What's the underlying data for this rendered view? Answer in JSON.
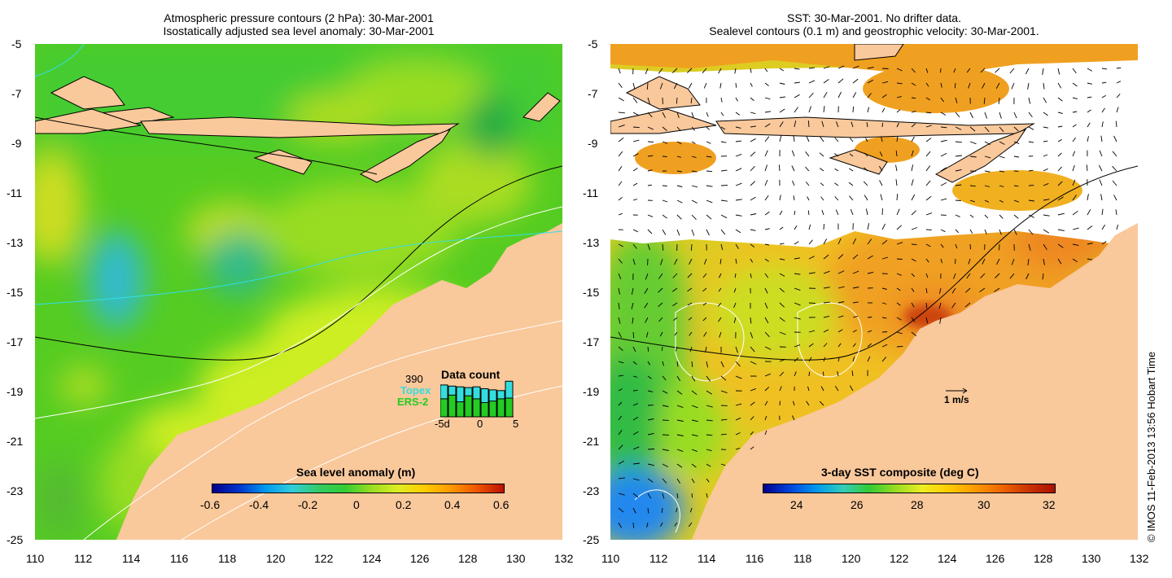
{
  "left_panel": {
    "title_line1": "Atmospheric pressure contours (2 hPa): 30-Mar-2001",
    "title_line2": "Isostatically adjusted sea level anomaly: 30-Mar-2001",
    "colorbar": {
      "title": "Sea level anomaly (m)",
      "ticks": [
        "-0.6",
        "-0.4",
        "-0.2",
        "0",
        "0.2",
        "0.4",
        "0.6"
      ]
    },
    "data_count": {
      "title": "Data count",
      "max_value": "390",
      "topex_label": "Topex",
      "ers2_label": "ERS-2",
      "x_ticks": [
        "-5d",
        "0",
        "5"
      ],
      "topex_color": "#33dddd",
      "ers2_color": "#22cc22",
      "topex_values": [
        0.85,
        0.82,
        0.8,
        0.78,
        0.8,
        0.75,
        0.72,
        0.7,
        0.95
      ],
      "ers2_values": [
        0.48,
        0.58,
        0.4,
        0.56,
        0.48,
        0.38,
        0.42,
        0.48,
        0.5
      ]
    }
  },
  "right_panel": {
    "title_line1": "SST: 30-Mar-2001. No drifter data.",
    "title_line2": "Sealevel contours (0.1 m) and geostrophic velocity: 30-Mar-2001.",
    "colorbar": {
      "title": "3-day SST composite (deg C)",
      "ticks": [
        "24",
        "26",
        "28",
        "30",
        "32"
      ]
    },
    "scale_arrow_label": "1 m/s"
  },
  "axes": {
    "y_ticks": [
      "-5",
      "-7",
      "-9",
      "-11",
      "-13",
      "-15",
      "-17",
      "-19",
      "-21",
      "-23",
      "-25"
    ],
    "x_ticks": [
      "110",
      "112",
      "114",
      "116",
      "118",
      "120",
      "122",
      "124",
      "126",
      "128",
      "130",
      "132"
    ]
  },
  "credit": "© IMOS 11-Feb-2013 13:56 Hobart Time",
  "colors": {
    "land": "#f9c89b",
    "ocean_green": "#33cc33",
    "ocean_yellow": "#ccee22",
    "ocean_cyan": "#33bbee",
    "sst_orange": "#f0a020"
  }
}
